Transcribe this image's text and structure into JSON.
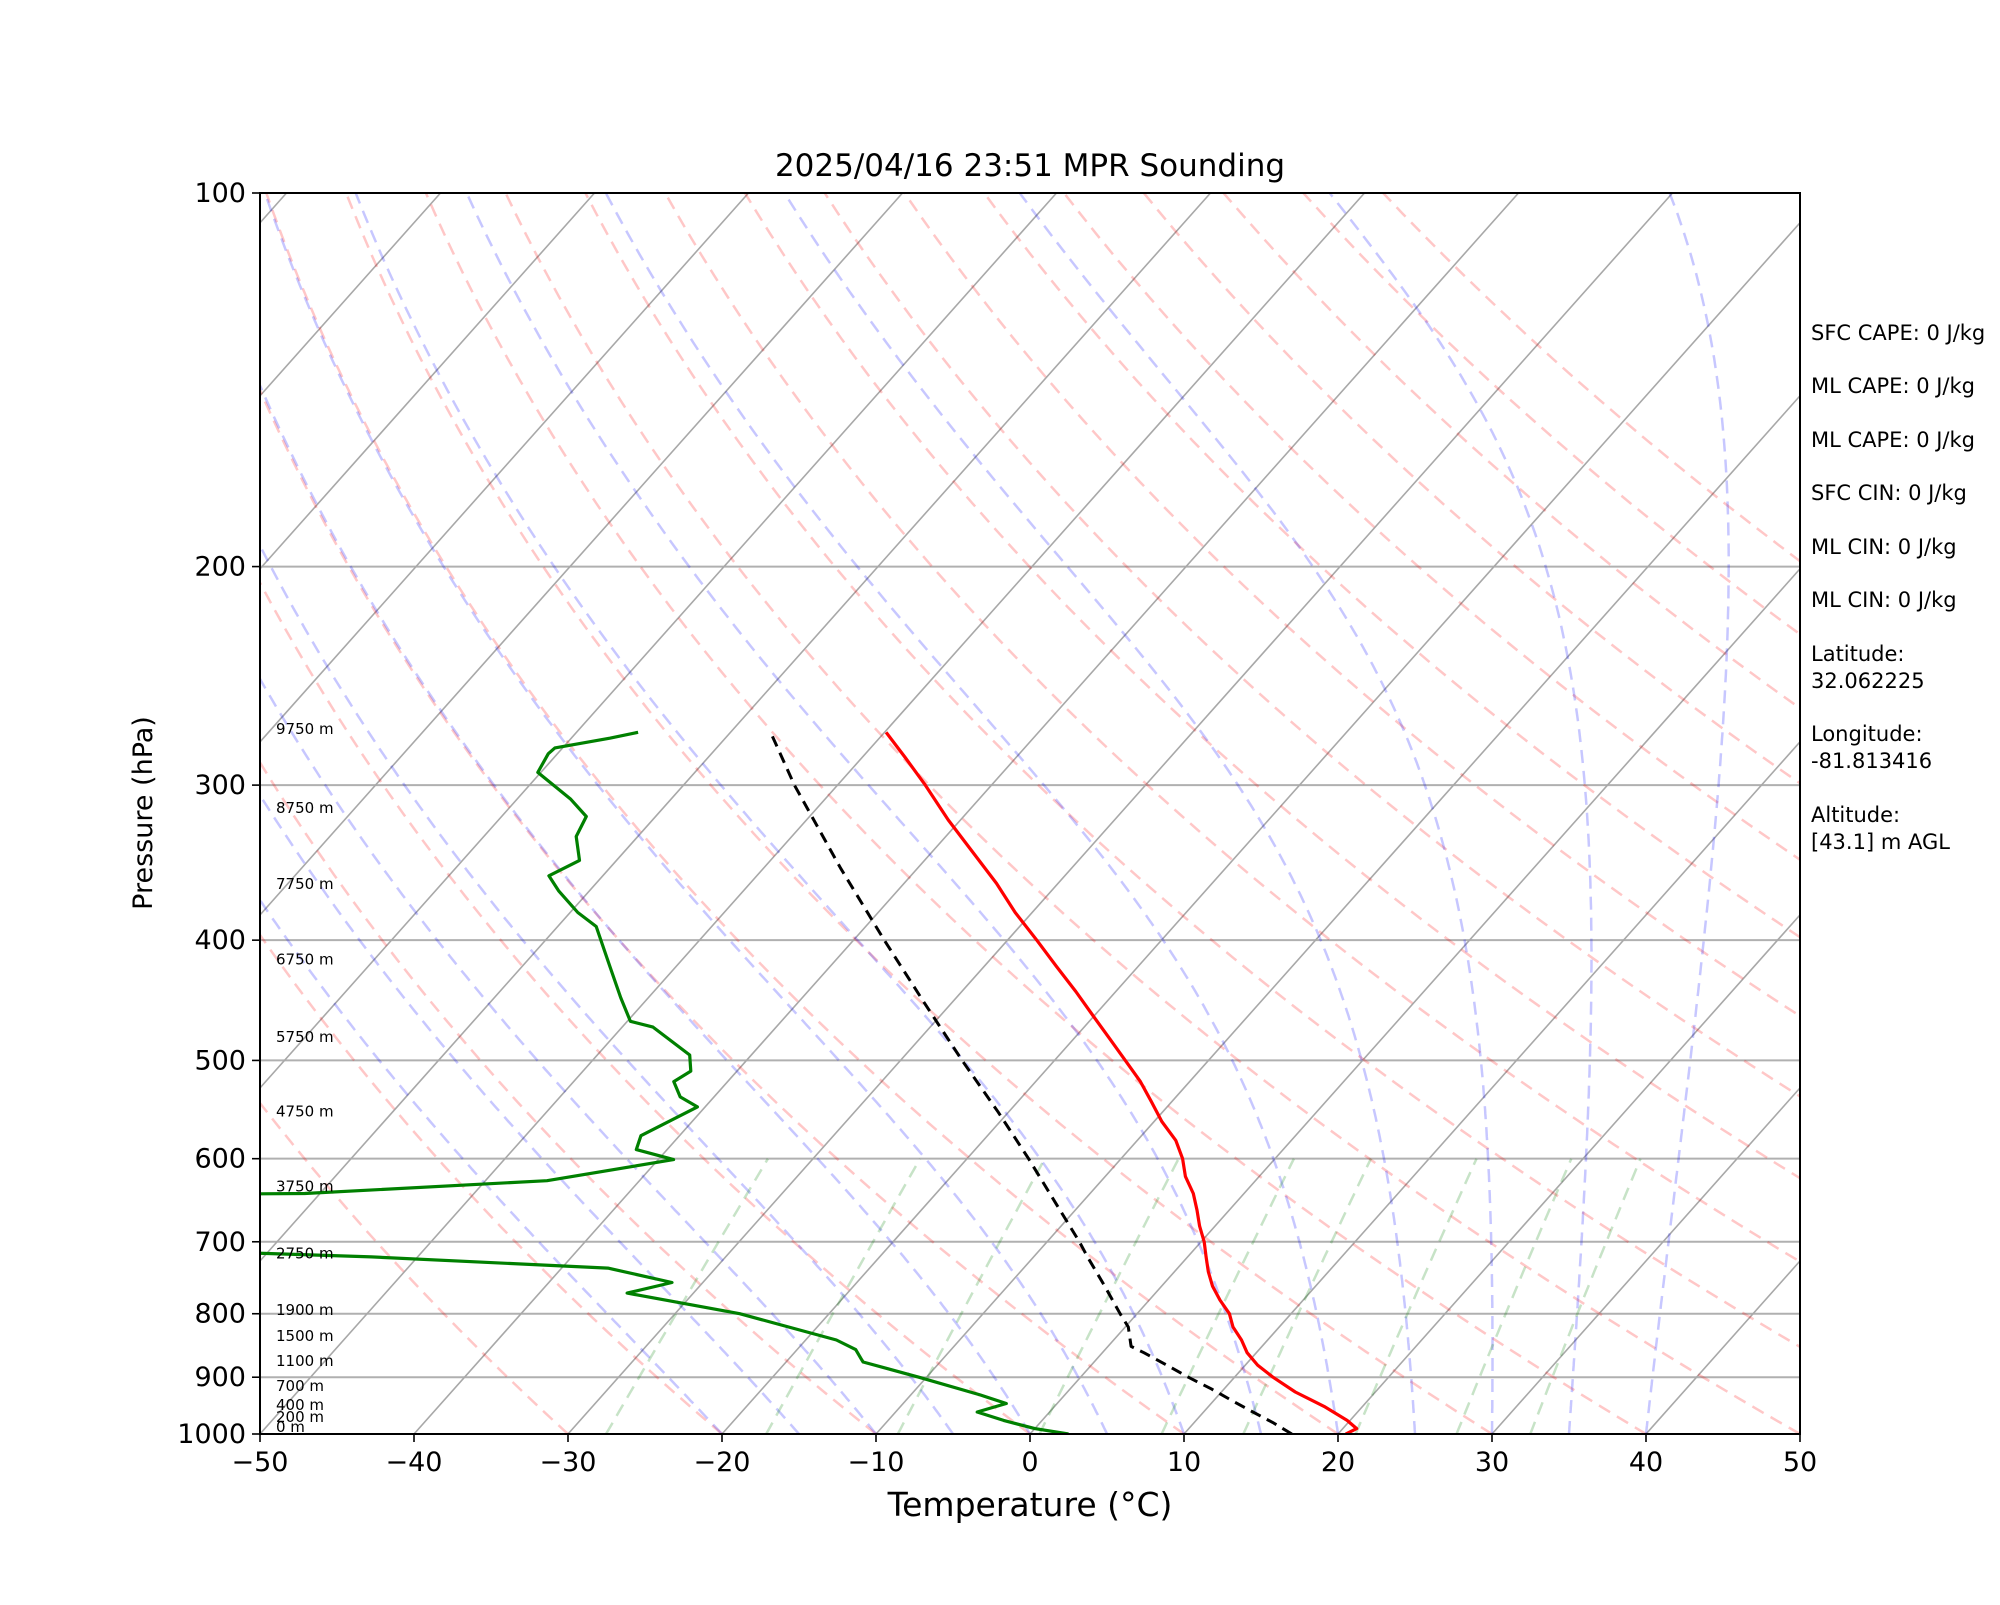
{
  "chart_data": {
    "type": "line",
    "title": "2025/04/16 23:51 MPR Sounding",
    "xlabel": "Temperature (°C)",
    "ylabel": "Pressure (hPa)",
    "xlim": [
      -50,
      50
    ],
    "ylim": [
      1000,
      100
    ],
    "y_scale": "log",
    "grid": true,
    "x_ticks": [
      "−50",
      "−40",
      "−30",
      "−20",
      "−10",
      "0",
      "10",
      "20",
      "30",
      "40",
      "50"
    ],
    "y_ticks": [
      "1000",
      "900",
      "800",
      "700",
      "600",
      "500",
      "400",
      "300",
      "200",
      "100"
    ],
    "series": [
      {
        "role": "temperature",
        "color": "#ff0000",
        "points": [
          {
            "p": 1000,
            "t": 20.5
          },
          {
            "p": 990,
            "t": 20.9
          },
          {
            "p": 975,
            "t": 19.8
          },
          {
            "p": 950,
            "t": 17.5
          },
          {
            "p": 925,
            "t": 14.8
          },
          {
            "p": 900,
            "t": 12.5
          },
          {
            "p": 880,
            "t": 10.8
          },
          {
            "p": 860,
            "t": 9.4
          },
          {
            "p": 840,
            "t": 8.3
          },
          {
            "p": 820,
            "t": 7.0
          },
          {
            "p": 800,
            "t": 6.0
          },
          {
            "p": 780,
            "t": 4.6
          },
          {
            "p": 760,
            "t": 3.3
          },
          {
            "p": 740,
            "t": 2.2
          },
          {
            "p": 720,
            "t": 1.2
          },
          {
            "p": 700,
            "t": 0.2
          },
          {
            "p": 680,
            "t": -1.0
          },
          {
            "p": 660,
            "t": -2.1
          },
          {
            "p": 640,
            "t": -3.3
          },
          {
            "p": 620,
            "t": -4.8
          },
          {
            "p": 600,
            "t": -6.0
          },
          {
            "p": 580,
            "t": -7.5
          },
          {
            "p": 560,
            "t": -9.5
          },
          {
            "p": 540,
            "t": -11.3
          },
          {
            "p": 520,
            "t": -13.2
          },
          {
            "p": 500,
            "t": -15.4
          },
          {
            "p": 480,
            "t": -17.7
          },
          {
            "p": 460,
            "t": -20.1
          },
          {
            "p": 440,
            "t": -22.6
          },
          {
            "p": 420,
            "t": -25.3
          },
          {
            "p": 400,
            "t": -28.1
          },
          {
            "p": 380,
            "t": -31.1
          },
          {
            "p": 360,
            "t": -34.0
          },
          {
            "p": 340,
            "t": -37.3
          },
          {
            "p": 320,
            "t": -40.8
          },
          {
            "p": 300,
            "t": -44.3
          },
          {
            "p": 285,
            "t": -47.2
          },
          {
            "p": 272,
            "t": -49.9
          }
        ]
      },
      {
        "role": "dewpoint",
        "color": "#008000",
        "points": [
          {
            "p": 1000,
            "t": 2.5
          },
          {
            "p": 990,
            "t": 0.0
          },
          {
            "p": 975,
            "t": -2.5
          },
          {
            "p": 960,
            "t": -4.7
          },
          {
            "p": 945,
            "t": -3.3
          },
          {
            "p": 930,
            "t": -5.5
          },
          {
            "p": 900,
            "t": -10.5
          },
          {
            "p": 875,
            "t": -15.0
          },
          {
            "p": 870,
            "t": -15.3
          },
          {
            "p": 855,
            "t": -16.2
          },
          {
            "p": 840,
            "t": -18.0
          },
          {
            "p": 800,
            "t": -25.8
          },
          {
            "p": 770,
            "t": -34.3
          },
          {
            "p": 755,
            "t": -32.0
          },
          {
            "p": 735,
            "t": -37.0
          },
          {
            "p": 720,
            "t": -53.0
          },
          {
            "p": 705,
            "t": -76.0
          },
          {
            "p": 690,
            "t": -86.0
          },
          {
            "p": 685,
            "t": -88.0
          },
          {
            "p": 644,
            "t": -93.0
          },
          {
            "p": 640,
            "t": -61.0
          },
          {
            "p": 625,
            "t": -46.0
          },
          {
            "p": 601,
            "t": -39.0
          },
          {
            "p": 590,
            "t": -42.0
          },
          {
            "p": 575,
            "t": -42.5
          },
          {
            "p": 545,
            "t": -40.5
          },
          {
            "p": 535,
            "t": -42.2
          },
          {
            "p": 520,
            "t": -43.5
          },
          {
            "p": 510,
            "t": -43.0
          },
          {
            "p": 495,
            "t": -44.0
          },
          {
            "p": 470,
            "t": -48.0
          },
          {
            "p": 465,
            "t": -49.8
          },
          {
            "p": 445,
            "t": -51.8
          },
          {
            "p": 420,
            "t": -54.3
          },
          {
            "p": 390,
            "t": -57.5
          },
          {
            "p": 380,
            "t": -59.5
          },
          {
            "p": 365,
            "t": -62.0
          },
          {
            "p": 355,
            "t": -63.5
          },
          {
            "p": 345,
            "t": -62.4
          },
          {
            "p": 330,
            "t": -64.0
          },
          {
            "p": 318,
            "t": -64.5
          },
          {
            "p": 308,
            "t": -66.5
          },
          {
            "p": 293,
            "t": -70.2
          },
          {
            "p": 283,
            "t": -70.6
          },
          {
            "p": 280,
            "t": -70.5
          },
          {
            "p": 275,
            "t": -67.5
          },
          {
            "p": 272,
            "t": -66.0
          }
        ]
      },
      {
        "role": "parcel-profile",
        "color": "#000000",
        "style": "dashed",
        "points": [
          {
            "p": 1000,
            "t": 17.0
          },
          {
            "p": 980,
            "t": 15.2
          },
          {
            "p": 960,
            "t": 13.2
          },
          {
            "p": 940,
            "t": 11.2
          },
          {
            "p": 920,
            "t": 9.2
          },
          {
            "p": 900,
            "t": 7.0
          },
          {
            "p": 880,
            "t": 4.9
          },
          {
            "p": 860,
            "t": 2.7
          },
          {
            "p": 850,
            "t": 1.5
          },
          {
            "p": 820,
            "t": 0.2
          },
          {
            "p": 800,
            "t": -1.1
          },
          {
            "p": 760,
            "t": -3.7
          },
          {
            "p": 720,
            "t": -6.5
          },
          {
            "p": 700,
            "t": -7.9
          },
          {
            "p": 650,
            "t": -11.8
          },
          {
            "p": 600,
            "t": -16.0
          },
          {
            "p": 550,
            "t": -20.7
          },
          {
            "p": 500,
            "t": -26.0
          },
          {
            "p": 450,
            "t": -31.7
          },
          {
            "p": 400,
            "t": -38.0
          },
          {
            "p": 350,
            "t": -45.0
          },
          {
            "p": 300,
            "t": -52.8
          },
          {
            "p": 272,
            "t": -57.4
          }
        ]
      }
    ],
    "height_labels": [
      {
        "label": "0 m",
        "p": 1000
      },
      {
        "label": "200 m",
        "p": 982
      },
      {
        "label": "400 m",
        "p": 960
      },
      {
        "label": "700 m",
        "p": 927
      },
      {
        "label": "1100 m",
        "p": 885
      },
      {
        "label": "1500 m",
        "p": 845
      },
      {
        "label": "1900 m",
        "p": 805
      },
      {
        "label": "2750 m",
        "p": 725
      },
      {
        "label": "3750 m",
        "p": 640
      },
      {
        "label": "4750 m",
        "p": 557
      },
      {
        "label": "5750 m",
        "p": 485
      },
      {
        "label": "6750 m",
        "p": 420
      },
      {
        "label": "7750 m",
        "p": 365
      },
      {
        "label": "8750 m",
        "p": 317
      },
      {
        "label": "9750 m",
        "p": 274
      }
    ],
    "dry_adiabats_c": [
      -30,
      -20,
      -10,
      0,
      10,
      20,
      30,
      40,
      50,
      60,
      70,
      80,
      90,
      100,
      110,
      120,
      130,
      140,
      150,
      160
    ],
    "moist_adiabats_c": [
      -20,
      -15,
      -10,
      -5,
      0,
      5,
      10,
      15,
      20,
      25,
      30,
      35,
      40
    ],
    "mixing_ratio_lines_gkg": [
      0.4,
      1,
      2,
      4,
      7,
      10,
      16,
      24,
      32
    ]
  },
  "annotations": {
    "sfc_cape": "SFC CAPE: 0 J/kg",
    "ml_cape": "ML CAPE: 0 J/kg",
    "ml_cape_2": "ML CAPE: 0 J/kg",
    "sfc_cin": "SFC CIN: 0 J/kg",
    "ml_cin": "ML CIN: 0 J/kg",
    "ml_cin_2": "ML CIN: 0 J/kg",
    "latitude_label": "Latitude:",
    "latitude_value": "32.062225",
    "longitude_label": "Longitude:",
    "longitude_value": "-81.813416",
    "altitude_label": "Altitude:",
    "altitude_value": "[43.1] m AGL"
  }
}
